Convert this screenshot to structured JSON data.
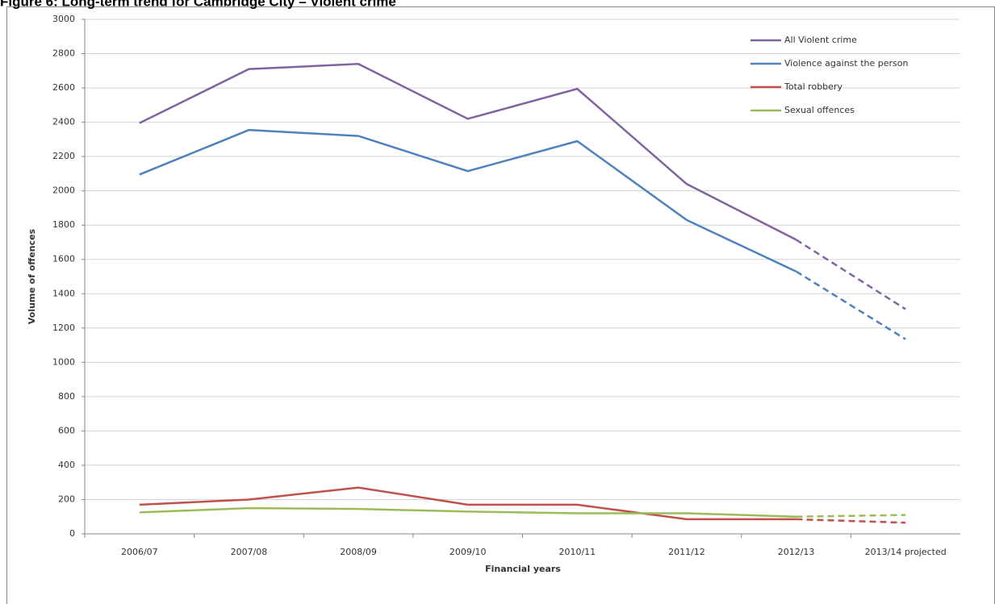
{
  "chart_data": {
    "type": "line",
    "title": "Figure 6: Long-term trend for Cambridge City – Violent crime",
    "x_label": "Financial years",
    "y_label": "Volume of offences",
    "categories": [
      "2006/07",
      "2007/08",
      "2008/09",
      "2009/10",
      "2010/11",
      "2011/12",
      "2012/13",
      "2013/14 projected"
    ],
    "series": [
      {
        "name": "All Violent crime",
        "color": "#8064a2",
        "values": [
          2395,
          2710,
          2740,
          2420,
          2595,
          2040,
          1715,
          1310
        ]
      },
      {
        "name": "Violence against the person",
        "color": "#4f81bd",
        "values": [
          2095,
          2355,
          2320,
          2115,
          2290,
          1830,
          1530,
          1135
        ]
      },
      {
        "name": "Total robbery",
        "color": "#c0504d",
        "values": [
          170,
          200,
          270,
          170,
          170,
          85,
          85,
          65
        ]
      },
      {
        "name": "Sexual offences",
        "color": "#9bbb59",
        "values": [
          125,
          150,
          145,
          130,
          120,
          120,
          100,
          110
        ]
      }
    ],
    "last_segment_dashed": true,
    "ylim": [
      0,
      3000
    ],
    "yticks": [
      0,
      200,
      400,
      600,
      800,
      1000,
      1200,
      1400,
      1600,
      1800,
      2000,
      2200,
      2400,
      2600,
      2800,
      3000
    ],
    "grid": true,
    "legend": "top-right"
  }
}
